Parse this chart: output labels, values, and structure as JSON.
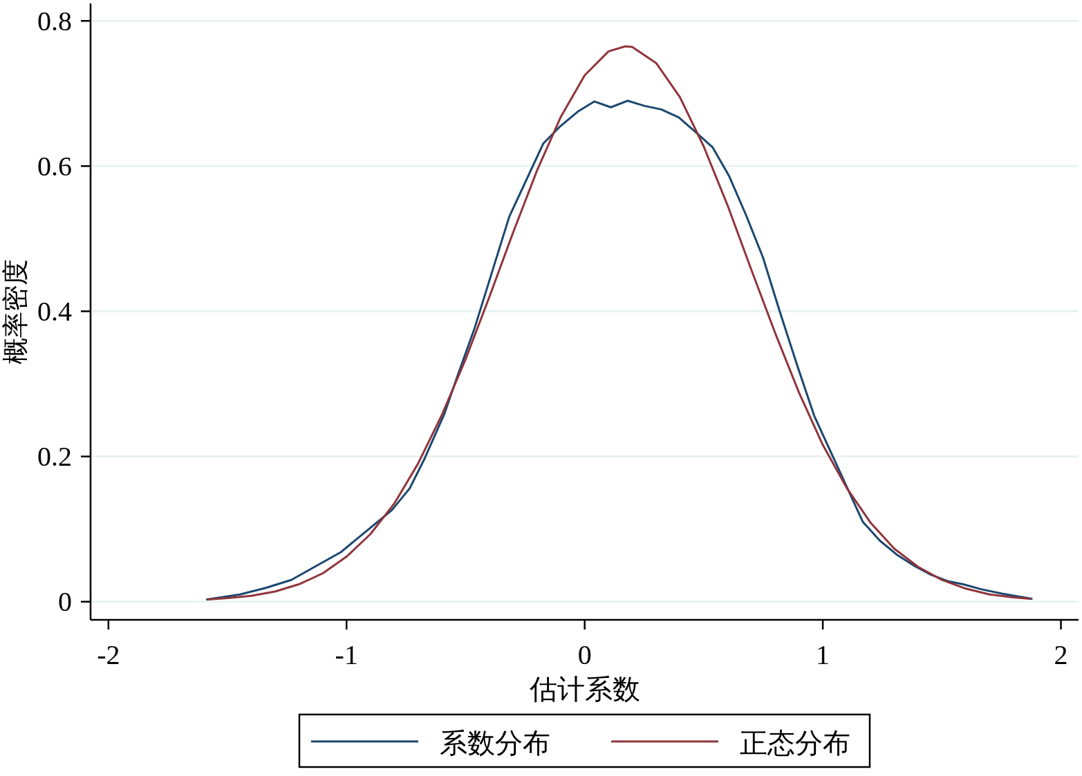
{
  "chart_data": {
    "type": "line",
    "xlabel": "估计系数",
    "ylabel": "概率密度",
    "xlim": [
      -2.075,
      2.074
    ],
    "ylim": [
      -0.025,
      0.824
    ],
    "xticks": [
      -2,
      -1,
      0,
      1,
      2
    ],
    "yticks": [
      0,
      0.2,
      0.4,
      0.6,
      0.8
    ],
    "grid": "y",
    "legend": "bottom",
    "line_style": "solid",
    "marker": "none",
    "series": [
      {
        "name": "系数分布",
        "color": "#1a476f",
        "x": [
          -1.586,
          -1.447,
          -1.339,
          -1.232,
          -1.025,
          -0.81,
          -0.735,
          -0.671,
          -0.59,
          -0.534,
          -0.462,
          -0.317,
          -0.174,
          -0.102,
          -0.029,
          0.041,
          0.11,
          0.18,
          0.25,
          0.322,
          0.395,
          0.465,
          0.537,
          0.607,
          0.677,
          0.749,
          0.819,
          0.892,
          0.964,
          1.168,
          1.24,
          1.31,
          1.386,
          1.455,
          1.528,
          1.589,
          1.667,
          1.755,
          1.877
        ],
        "values": [
          0.003,
          0.01,
          0.019,
          0.03,
          0.068,
          0.126,
          0.156,
          0.198,
          0.258,
          0.311,
          0.377,
          0.53,
          0.631,
          0.655,
          0.675,
          0.689,
          0.681,
          0.69,
          0.683,
          0.678,
          0.667,
          0.647,
          0.626,
          0.586,
          0.533,
          0.474,
          0.4,
          0.326,
          0.256,
          0.11,
          0.084,
          0.065,
          0.049,
          0.037,
          0.028,
          0.024,
          0.017,
          0.011,
          0.004
        ]
      },
      {
        "name": "正态分布",
        "color": "#90353b",
        "x": [
          -1.58,
          -1.5,
          -1.4,
          -1.3,
          -1.2,
          -1.1,
          -1.0,
          -0.9,
          -0.8,
          -0.7,
          -0.6,
          -0.5,
          -0.4,
          -0.3,
          -0.2,
          -0.1,
          0.0,
          0.1,
          0.171,
          0.2,
          0.3,
          0.4,
          0.5,
          0.6,
          0.7,
          0.8,
          0.9,
          1.0,
          1.1,
          1.2,
          1.3,
          1.4,
          1.5,
          1.6,
          1.7,
          1.8,
          1.87
        ],
        "values": [
          0.003,
          0.005,
          0.008,
          0.014,
          0.024,
          0.039,
          0.062,
          0.093,
          0.135,
          0.19,
          0.257,
          0.334,
          0.42,
          0.509,
          0.594,
          0.668,
          0.725,
          0.758,
          0.765,
          0.764,
          0.742,
          0.695,
          0.627,
          0.546,
          0.457,
          0.37,
          0.288,
          0.216,
          0.157,
          0.109,
          0.073,
          0.048,
          0.03,
          0.018,
          0.01,
          0.006,
          0.004
        ]
      }
    ]
  }
}
